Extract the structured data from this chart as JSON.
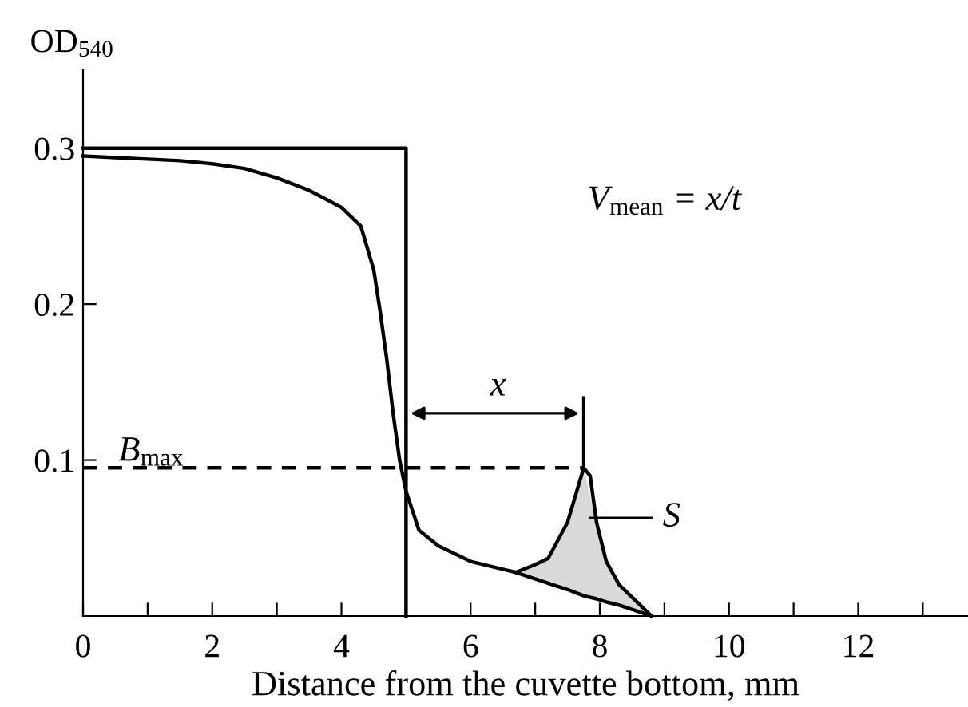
{
  "chart_data": {
    "type": "line",
    "ylabel": "OD$_{540}$",
    "xlabel": "Distance from the cuvette bottom, mm",
    "xlim": [
      0,
      13.7
    ],
    "ylim": [
      0,
      0.35
    ],
    "xticks": [
      0,
      {
        "value": 1,
        "label": null
      },
      2,
      {
        "value": 3,
        "label": null
      },
      4,
      {
        "value": 5,
        "label": null
      },
      6,
      {
        "value": 7,
        "label": null
      },
      8,
      {
        "value": 9,
        "label": null
      },
      10,
      {
        "value": 11,
        "label": null
      },
      12,
      {
        "value": 13,
        "label": null
      }
    ],
    "yticks": [
      0.1,
      0.2,
      0.3
    ],
    "grid": false,
    "marker": "none",
    "series": [
      {
        "color": "#000000",
        "line_style": "solid",
        "x": [
          0,
          0.5,
          1,
          1.5,
          2,
          2.5,
          3,
          3.5,
          4,
          4.3,
          4.5,
          4.6,
          4.7,
          4.8,
          4.9,
          5,
          5.2,
          5.5,
          6,
          6.5,
          6.7,
          7,
          7.2,
          7.5,
          7.75,
          7.85,
          7.95,
          8.1,
          8.3,
          8.8
        ],
        "values": [
          0.295,
          0.294,
          0.293,
          0.292,
          0.29,
          0.287,
          0.281,
          0.273,
          0.262,
          0.25,
          0.222,
          0.195,
          0.165,
          0.13,
          0.1,
          0.08,
          0.055,
          0.045,
          0.035,
          0.03,
          0.028,
          0.033,
          0.037,
          0.06,
          0.095,
          0.09,
          0.06,
          0.035,
          0.02,
          0.0
        ]
      },
      {
        "color": "#000000",
        "line_style": "solid",
        "x": [
          0,
          5,
          5
        ],
        "values": [
          0.3,
          0.3,
          0
        ]
      },
      {
        "color": "#000000",
        "line_style": "dashed",
        "x": [
          0,
          7.75
        ],
        "values": [
          0.095,
          0.095
        ]
      },
      {
        "color": "#000000",
        "line_style": "solid",
        "x": [
          6.7,
          7.2,
          7.5,
          7.75,
          7.95,
          8.1,
          8.3,
          8.8
        ],
        "values": [
          0.028,
          0.021,
          0.017,
          0.013,
          0.011,
          0.009,
          0.007,
          0.0
        ]
      }
    ],
    "annotations": [
      "B$_{max}$",
      "x",
      "S",
      "V$_{mean}$ = x/t"
    ]
  }
}
